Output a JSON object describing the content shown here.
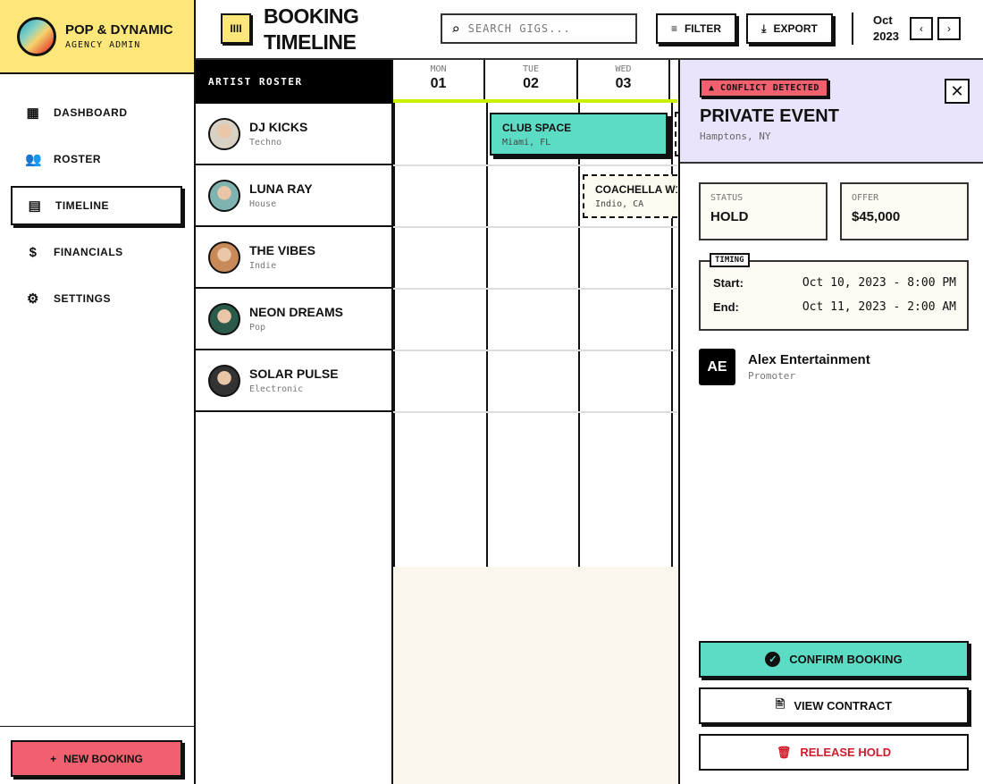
{
  "brand": {
    "name": "POP & DYNAMIC",
    "subtitle": "AGENCY ADMIN"
  },
  "nav": [
    {
      "label": "DASHBOARD",
      "icon": "dashboard-icon"
    },
    {
      "label": "ROSTER",
      "icon": "people-icon"
    },
    {
      "label": "TIMELINE",
      "icon": "calendar-icon",
      "active": true
    },
    {
      "label": "FINANCIALS",
      "icon": "dollar-icon"
    },
    {
      "label": "SETTINGS",
      "icon": "gear-icon"
    }
  ],
  "new_booking": "NEW BOOKING",
  "header": {
    "title_line1": "BOOKING",
    "title_line2": "TIMELINE",
    "search_placeholder": "SEARCH GIGS...",
    "filter": "FILTER",
    "export": "EXPORT",
    "month": "Oct",
    "year": "2023"
  },
  "roster": {
    "title": "ARTIST ROSTER",
    "artists": [
      {
        "name": "DJ KICKS",
        "genre": "Techno"
      },
      {
        "name": "LUNA RAY",
        "genre": "House"
      },
      {
        "name": "THE VIBES",
        "genre": "Indie"
      },
      {
        "name": "NEON DREAMS",
        "genre": "Pop"
      },
      {
        "name": "SOLAR PULSE",
        "genre": "Electronic"
      }
    ]
  },
  "days": [
    {
      "dow": "MON",
      "num": "01"
    },
    {
      "dow": "TUE",
      "num": "02"
    },
    {
      "dow": "WED",
      "num": "03"
    }
  ],
  "events": [
    {
      "title": "CLUB SPACE",
      "location": "Miami, FL",
      "status": "confirmed"
    },
    {
      "title": "COACHELLA W1",
      "location": "Indio, CA",
      "status": "hold"
    }
  ],
  "panel": {
    "badge": "CONFLICT DETECTED",
    "title": "PRIVATE EVENT",
    "location": "Hamptons, NY",
    "status_label": "STATUS",
    "status": "HOLD",
    "offer_label": "OFFER",
    "offer": "$45,000",
    "timing_label": "TIMING",
    "start_label": "Start:",
    "start": "Oct 10, 2023 - 8:00 PM",
    "end_label": "End:",
    "end": "Oct 11, 2023 - 2:00 AM",
    "promoter_initials": "AE",
    "promoter_name": "Alex Entertainment",
    "promoter_role": "Promoter",
    "confirm": "CONFIRM BOOKING",
    "contract": "VIEW CONTRACT",
    "release": "RELEASE HOLD"
  },
  "colors": {
    "yellow": "#fde77a",
    "teal": "#5cdcc4",
    "red": "#f0606e",
    "lavender": "#e9e4fb",
    "lime": "#c8f000"
  }
}
